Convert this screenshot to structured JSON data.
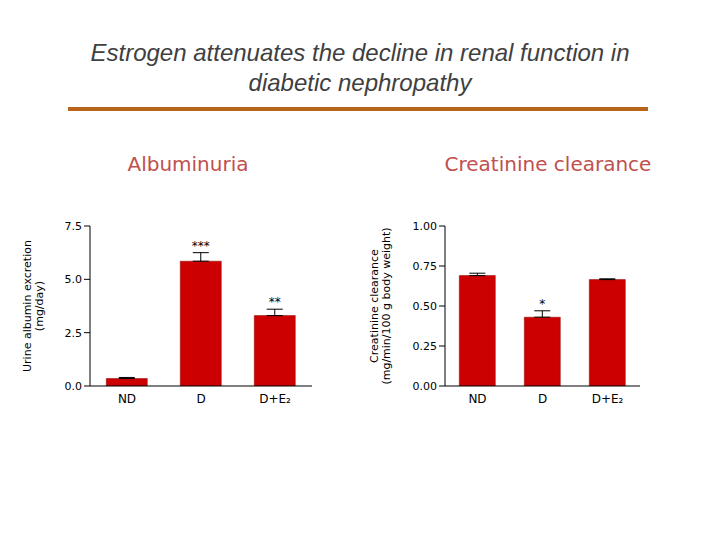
{
  "title": "Estrogen attenuates the decline in renal function in diabetic nephropathy",
  "chart_data": [
    {
      "type": "bar",
      "title": "Albuminuria",
      "ylabel": "Urine albumin excretion (mg/day)",
      "categories": [
        "ND",
        "D",
        "D+E₂"
      ],
      "values": [
        0.35,
        5.85,
        3.3
      ],
      "errors": [
        0.05,
        0.4,
        0.3
      ],
      "color": "#cc0000",
      "ylim": [
        0,
        7.5
      ],
      "yticks": [
        {
          "value": 0,
          "label": "0.0"
        },
        2.5,
        {
          "value": 5,
          "label": "5.0"
        },
        7.5
      ],
      "annotations": [
        {
          "category": "D",
          "text": "***"
        },
        {
          "category": "D+E₂",
          "text": "**"
        }
      ]
    },
    {
      "type": "bar",
      "title": "Creatinine clearance",
      "ylabel": "Creatinine clearance (mg/min/100 g body weight)",
      "categories": [
        "ND",
        "D",
        "D+E₂"
      ],
      "values": [
        0.69,
        0.43,
        0.665
      ],
      "errors": [
        0.015,
        0.04,
        0.005
      ],
      "color": "#cc0000",
      "ylim": [
        0,
        1
      ],
      "yticks": [
        {
          "value": 0,
          "label": "0.00"
        },
        {
          "value": 0.25,
          "label": "0.25"
        },
        {
          "value": 0.5,
          "label": "0.50"
        },
        {
          "value": 0.75,
          "label": "0.75"
        },
        {
          "value": 1,
          "label": "1.00"
        }
      ],
      "annotations": [
        {
          "category": "D",
          "text": "*"
        }
      ]
    }
  ]
}
